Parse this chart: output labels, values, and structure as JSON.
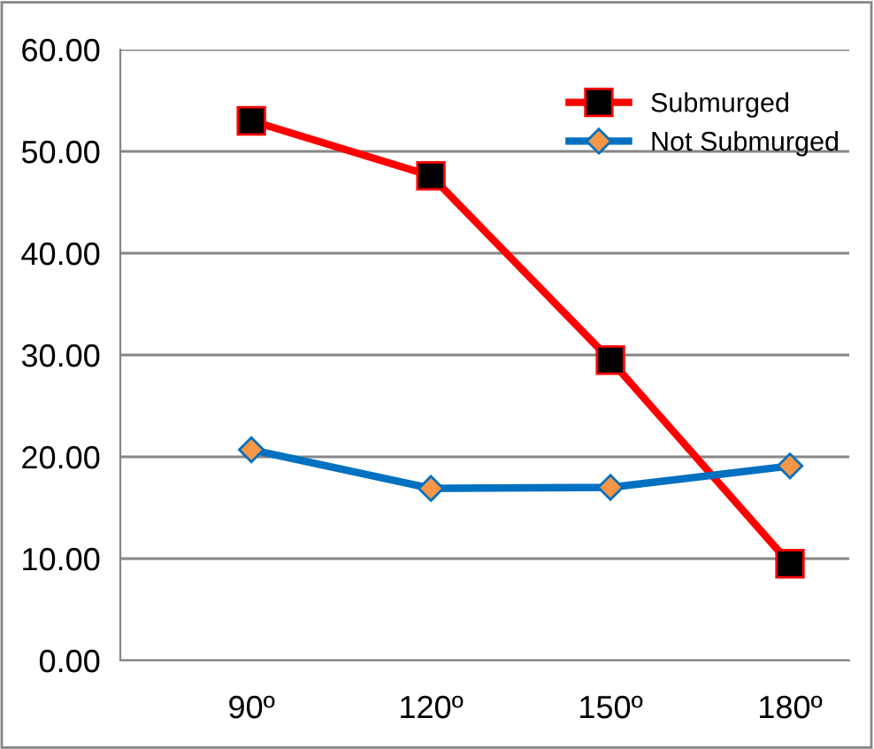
{
  "chart_data": {
    "type": "line",
    "categories": [
      "90º",
      "120º",
      "150º",
      "180º"
    ],
    "series": [
      {
        "name": "Submurged",
        "color": "#ff0000",
        "marker": "square",
        "values": [
          53.0,
          47.6,
          29.5,
          9.5
        ]
      },
      {
        "name": "Not Submurged",
        "color": "#0070c0",
        "marker": "diamond",
        "values": [
          20.7,
          16.9,
          17.0,
          19.1
        ]
      }
    ],
    "ylim": [
      0,
      60
    ],
    "yticks": [
      {
        "value": 0,
        "label": "0.00"
      },
      {
        "value": 10,
        "label": "10.00"
      },
      {
        "value": 20,
        "label": "20.00"
      },
      {
        "value": 30,
        "label": "30.00"
      },
      {
        "value": 40,
        "label": "40.00"
      },
      {
        "value": 50,
        "label": "50.00"
      },
      {
        "value": 60,
        "label": "60.00"
      }
    ],
    "grid": "y",
    "legend": "top right",
    "line_style": "solid"
  }
}
